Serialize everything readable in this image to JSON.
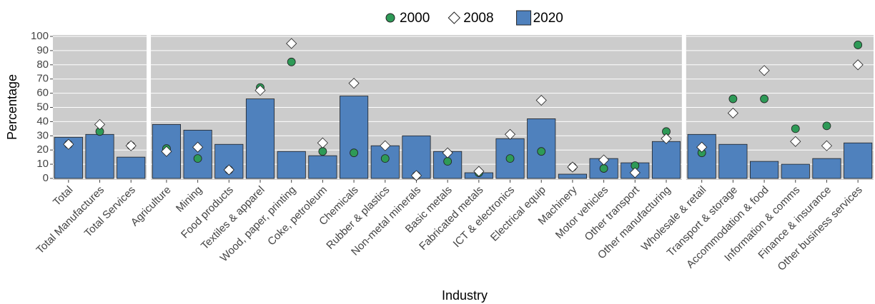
{
  "chart_data": {
    "type": "bar",
    "x_label": "Industry",
    "y_label": "Percentage",
    "ylim": [
      0,
      100
    ],
    "yticks": [
      0,
      10,
      20,
      30,
      40,
      50,
      60,
      70,
      80,
      90,
      100
    ],
    "grid": true,
    "legend_position": "top",
    "legend": [
      {
        "name": "2000",
        "color": "#2e9a57",
        "marker": "circle"
      },
      {
        "name": "2008",
        "color": "#ffffff",
        "marker": "diamond"
      },
      {
        "name": "2020",
        "color": "#4f81bd",
        "marker": "bar"
      }
    ],
    "panels": [
      {
        "categories": [
          "Total",
          "Total Manufactures",
          "Total Services"
        ],
        "series": [
          {
            "values": [
              24,
              33,
              23
            ]
          },
          {
            "values": [
              24,
              38,
              23
            ]
          },
          {
            "values": [
              29,
              31,
              15
            ]
          }
        ]
      },
      {
        "categories": [
          "Agriculture",
          "Mining",
          "Food products",
          "Textiles & apparel",
          "Wood, paper, printing",
          "Coke, petroleum",
          "Chemicals",
          "Rubber & plastics",
          "Non-metal minerals",
          "Basic metals",
          "Fabricated metals",
          "ICT & electronics",
          "Electrical equip",
          "Machinery",
          "Motor vehicles",
          "Other transport",
          "Other manufacturing"
        ],
        "series": [
          {
            "values": [
              21,
              14,
              6,
              64,
              82,
              19,
              18,
              14,
              2,
              12,
              4,
              14,
              19,
              8,
              7,
              9,
              33
            ]
          },
          {
            "values": [
              19,
              22,
              6,
              62,
              95,
              25,
              67,
              23,
              2,
              18,
              5,
              31,
              55,
              8,
              13,
              4,
              28
            ]
          },
          {
            "values": [
              38,
              34,
              24,
              56,
              19,
              16,
              58,
              23,
              30,
              19,
              4,
              28,
              42,
              3,
              14,
              11,
              26
            ]
          }
        ]
      },
      {
        "categories": [
          "Wholesale & retail",
          "Transport & storage",
          "Accommodation & food",
          "Information & comms",
          "Finance & insurance",
          "Other business services"
        ],
        "series": [
          {
            "values": [
              18,
              56,
              56,
              35,
              37,
              94
            ]
          },
          {
            "values": [
              22,
              46,
              76,
              26,
              23,
              80
            ]
          },
          {
            "values": [
              31,
              24,
              12,
              10,
              14,
              25
            ]
          }
        ]
      }
    ]
  }
}
